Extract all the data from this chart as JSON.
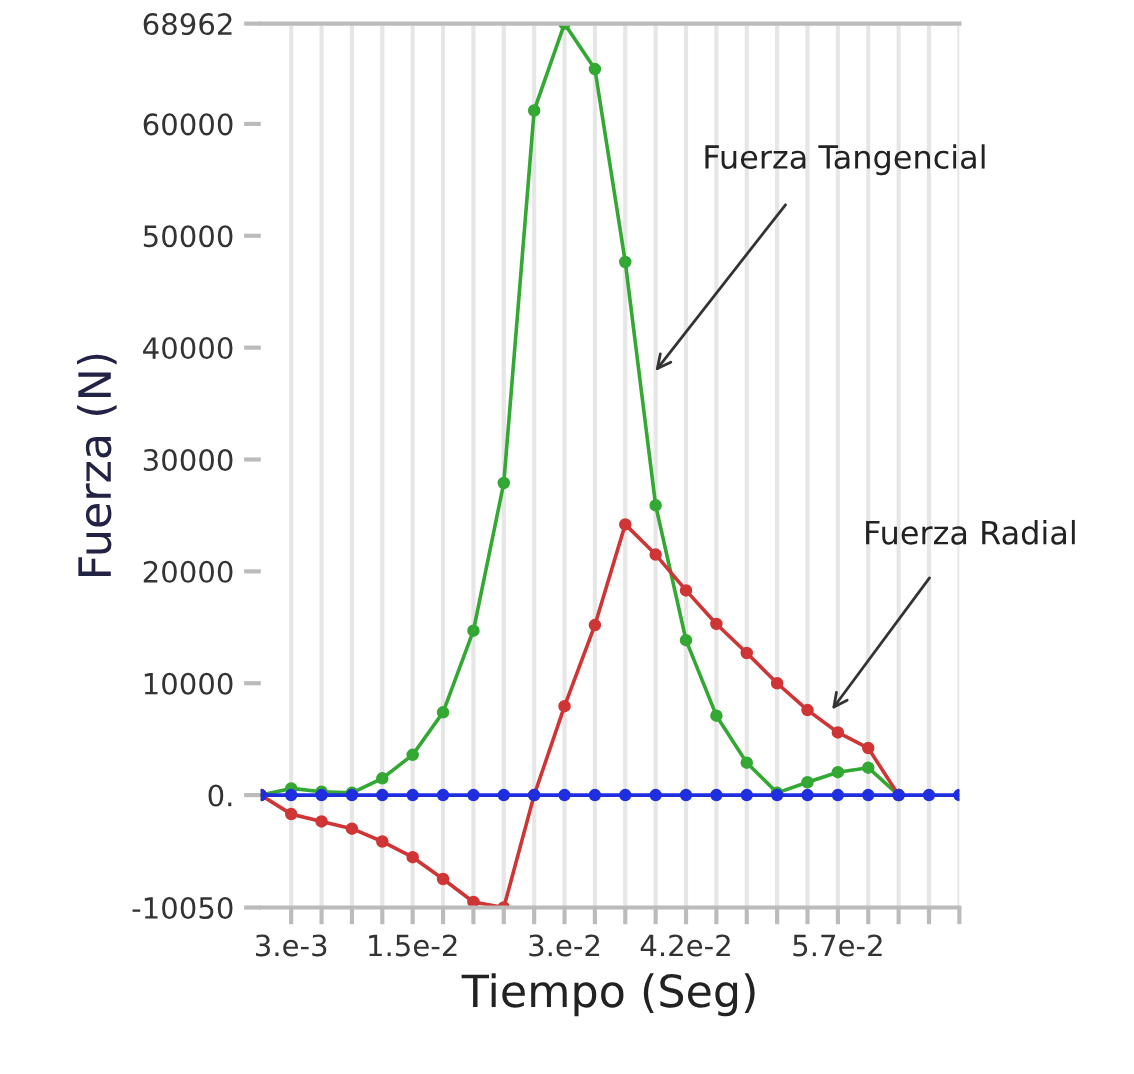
{
  "chart_data": {
    "type": "line",
    "xlabel": "Tiempo (Seg)",
    "ylabel": "Fuerza (N)",
    "x": [
      0,
      0.003,
      0.006,
      0.009,
      0.012,
      0.015,
      0.018,
      0.021,
      0.024,
      0.027,
      0.03,
      0.033,
      0.036,
      0.039,
      0.042,
      0.045,
      0.048,
      0.051,
      0.054,
      0.057,
      0.06,
      0.063,
      0.066,
      0.069
    ],
    "series": [
      {
        "color": "#33a833",
        "values": [
          0,
          600,
          300,
          200,
          1500,
          3600,
          7400,
          14700,
          27900,
          61200,
          68962,
          64900,
          47650,
          25900,
          13850,
          7100,
          2900,
          200,
          1150,
          2050,
          2450,
          0,
          null,
          null
        ]
      },
      {
        "color": "#d03535",
        "values": [
          0,
          -1700,
          -2350,
          -3000,
          -4150,
          -5550,
          -7500,
          -9550,
          -10050,
          0,
          7950,
          15200,
          24200,
          21500,
          18300,
          15300,
          12700,
          10000,
          7600,
          5600,
          4200,
          0,
          null,
          null
        ]
      },
      {
        "color": "#1f2fe0",
        "values": [
          0,
          0,
          0,
          0,
          0,
          0,
          0,
          0,
          0,
          0,
          0,
          0,
          0,
          0,
          0,
          0,
          0,
          0,
          0,
          0,
          0,
          0,
          0,
          0
        ]
      }
    ],
    "annotations": [
      "Fuerza Tangencial",
      "Fuerza Radial"
    ],
    "xlim": [
      0,
      0.069
    ],
    "xticks": [
      {
        "value": 0.003,
        "label": "3.e-3"
      },
      {
        "value": 0.006,
        "label": null
      },
      {
        "value": 0.009,
        "label": null
      },
      {
        "value": 0.012,
        "label": null
      },
      {
        "value": 0.015,
        "label": "1.5e-2"
      },
      {
        "value": 0.018,
        "label": null
      },
      {
        "value": 0.021,
        "label": null
      },
      {
        "value": 0.024,
        "label": null
      },
      {
        "value": 0.027,
        "label": null
      },
      {
        "value": 0.03,
        "label": "3.e-2"
      },
      {
        "value": 0.033,
        "label": null
      },
      {
        "value": 0.036,
        "label": null
      },
      {
        "value": 0.039,
        "label": null
      },
      {
        "value": 0.042,
        "label": "4.2e-2"
      },
      {
        "value": 0.045,
        "label": null
      },
      {
        "value": 0.048,
        "label": null
      },
      {
        "value": 0.051,
        "label": null
      },
      {
        "value": 0.054,
        "label": null
      },
      {
        "value": 0.057,
        "label": "5.7e-2"
      },
      {
        "value": 0.06,
        "label": null
      },
      {
        "value": 0.063,
        "label": null
      },
      {
        "value": 0.066,
        "label": null
      },
      {
        "value": 0.069,
        "label": null
      }
    ],
    "ylim": [
      -10050,
      68962
    ],
    "yticks": [
      -10050,
      {
        "value": 0,
        "label": "0."
      },
      10000,
      20000,
      30000,
      40000,
      50000,
      60000,
      68962
    ],
    "grid": "x",
    "legend": false,
    "marker": "circle",
    "line_style": "solid"
  }
}
